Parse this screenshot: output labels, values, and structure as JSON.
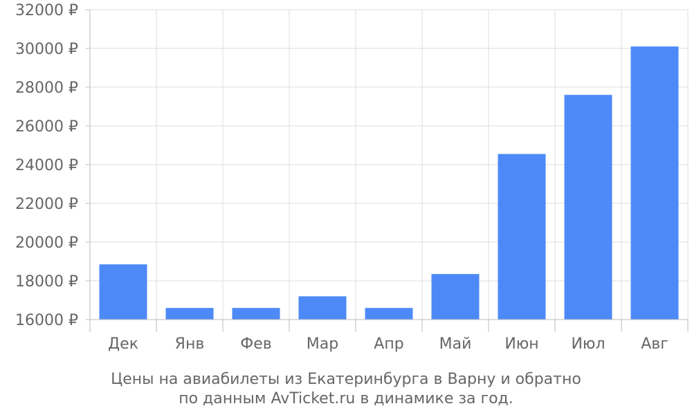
{
  "chart_data": {
    "type": "bar",
    "title": "",
    "xlabel": "",
    "ylabel": "",
    "categories": [
      "Дек",
      "Янв",
      "Фев",
      "Мар",
      "Апр",
      "Май",
      "Июн",
      "Июл",
      "Авг"
    ],
    "values": [
      18850,
      16600,
      16600,
      17200,
      16600,
      18350,
      24550,
      27600,
      30100
    ],
    "ylim": [
      16000,
      32000
    ],
    "yticks": [
      16000,
      18000,
      20000,
      22000,
      24000,
      26000,
      28000,
      30000,
      32000
    ],
    "ytick_labels": [
      "16000 ₽",
      "18000 ₽",
      "20000 ₽",
      "22000 ₽",
      "24000 ₽",
      "26000 ₽",
      "28000 ₽",
      "30000 ₽",
      "32000 ₽"
    ],
    "grid": true,
    "bar_color": "#4d8af8",
    "caption_line1": "Цены на авиабилеты из Екатеринбурга в Варну и обратно",
    "caption_line2": "по данным AvTicket.ru в динамике за год."
  }
}
